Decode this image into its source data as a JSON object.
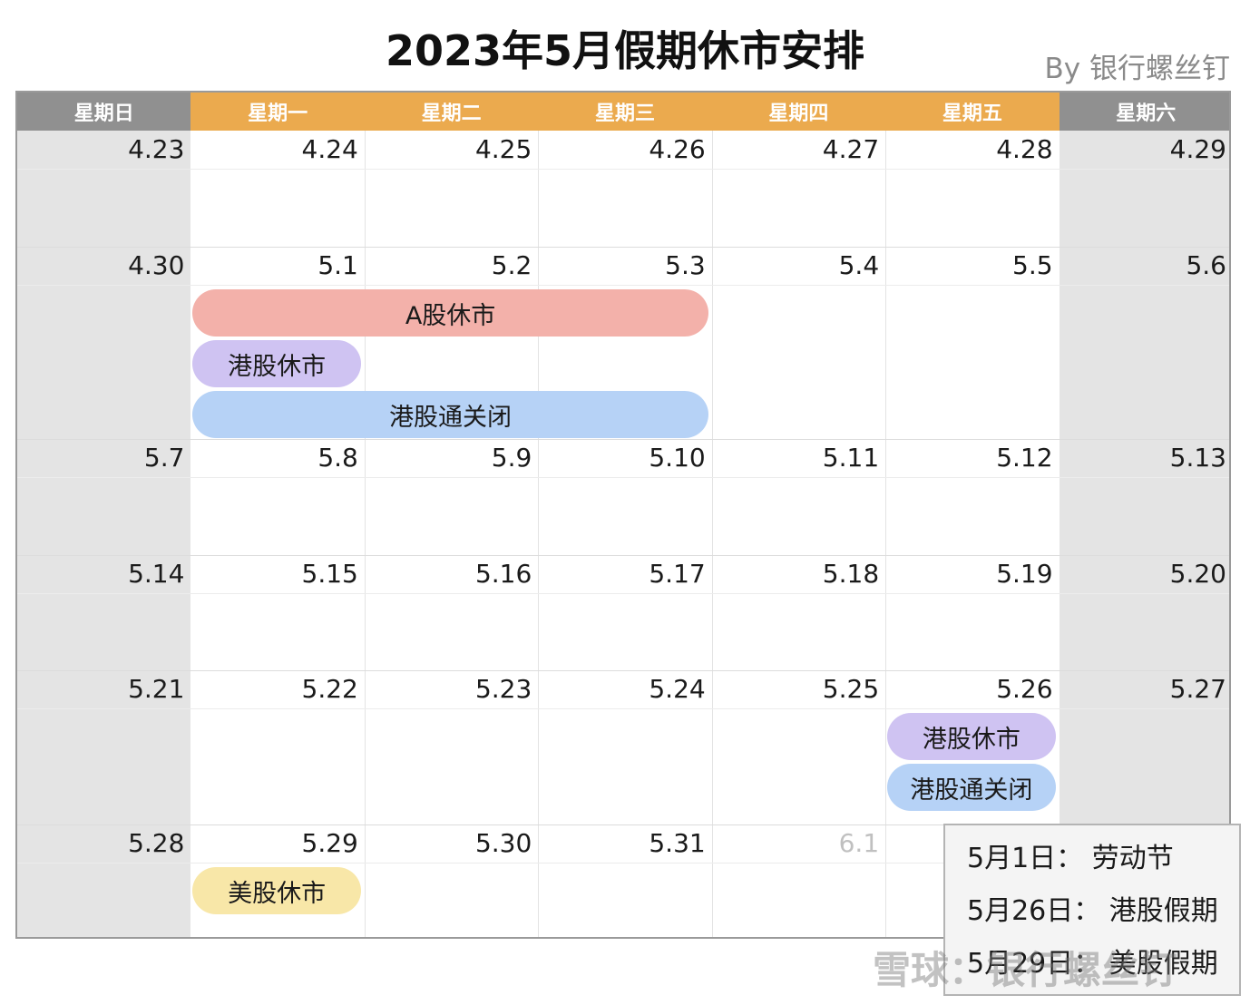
{
  "title": "2023年5月假期休市安排",
  "byline": "By 银行螺丝钉",
  "weekdays": [
    "星期日",
    "星期一",
    "星期二",
    "星期三",
    "星期四",
    "星期五",
    "星期六"
  ],
  "weeks": [
    [
      "4.23",
      "4.24",
      "4.25",
      "4.26",
      "4.27",
      "4.28",
      "4.29"
    ],
    [
      "4.30",
      "5.1",
      "5.2",
      "5.3",
      "5.4",
      "5.5",
      "5.6"
    ],
    [
      "5.7",
      "5.8",
      "5.9",
      "5.10",
      "5.11",
      "5.12",
      "5.13"
    ],
    [
      "5.14",
      "5.15",
      "5.16",
      "5.17",
      "5.18",
      "5.19",
      "5.20"
    ],
    [
      "5.21",
      "5.22",
      "5.23",
      "5.24",
      "5.25",
      "5.26",
      "5.27"
    ],
    [
      "5.28",
      "5.29",
      "5.30",
      "5.31",
      "6.1",
      "",
      ""
    ]
  ],
  "events": [
    {
      "label": "A股休市",
      "color": "#f3b1aa",
      "week": 1,
      "start_day": 1,
      "end_day": 3
    },
    {
      "label": "港股休市",
      "color": "#cfc3f2",
      "week": 1,
      "start_day": 1,
      "end_day": 1
    },
    {
      "label": "港股通关闭",
      "color": "#b6d2f6",
      "week": 1,
      "start_day": 1,
      "end_day": 3
    },
    {
      "label": "港股休市",
      "color": "#cfc3f2",
      "week": 4,
      "start_day": 5,
      "end_day": 5
    },
    {
      "label": "港股通关闭",
      "color": "#b6d2f6",
      "week": 4,
      "start_day": 5,
      "end_day": 5
    },
    {
      "label": "美股休市",
      "color": "#f8e7a8",
      "week": 5,
      "start_day": 1,
      "end_day": 1
    }
  ],
  "legend": [
    "5月1日： 劳动节",
    "5月26日： 港股假期",
    "5月29日： 美股假期"
  ],
  "watermark": "雪球：银行螺丝钉",
  "colors": {
    "header_weekday": "#ebaa4e",
    "header_weekend": "#909090",
    "weekend_bg": "#e4e4e4"
  }
}
